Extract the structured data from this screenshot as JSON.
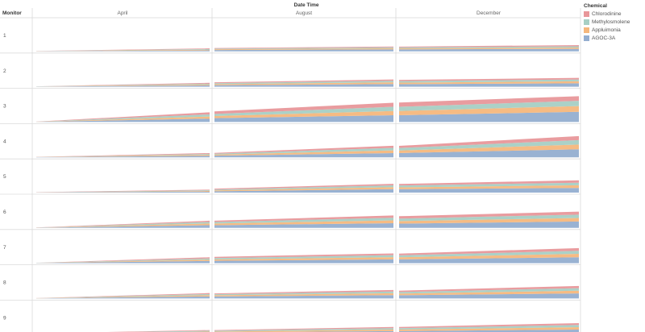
{
  "header": {
    "title": "Date Time",
    "row_header": "Monitor",
    "columns": [
      "April",
      "August",
      "December"
    ]
  },
  "legend": {
    "title": "Chemical",
    "items": [
      {
        "name": "Chlorodinine",
        "color": "#e8979a"
      },
      {
        "name": "Methylosmolene",
        "color": "#a7cfc4"
      },
      {
        "name": "Appluimonia",
        "color": "#f5b77c"
      },
      {
        "name": "AGOC-3A",
        "color": "#94aed0"
      }
    ]
  },
  "chart_data": {
    "type": "area",
    "stacked": true,
    "x": [
      "start",
      "end"
    ],
    "columns": [
      "April",
      "August",
      "December"
    ],
    "rows": [
      "1",
      "2",
      "3",
      "4",
      "5",
      "6",
      "7",
      "8",
      "9"
    ],
    "series_order": [
      "AGOC-3A",
      "Appluimonia",
      "Methylosmolene",
      "Chlorodinine"
    ],
    "panels": [
      {
        "monitor": "1",
        "month": "April",
        "start": [
          0.2,
          0.1,
          0.1,
          0.1
        ],
        "end": [
          1.2,
          0.8,
          0.8,
          0.8
        ]
      },
      {
        "monitor": "1",
        "month": "August",
        "start": [
          1.6,
          0.9,
          0.8,
          0.7
        ],
        "end": [
          2.4,
          1.3,
          1.1,
          1.0
        ]
      },
      {
        "monitor": "1",
        "month": "December",
        "start": [
          2.4,
          1.2,
          1.1,
          1.0
        ],
        "end": [
          3.0,
          1.6,
          1.4,
          1.4
        ]
      },
      {
        "monitor": "2",
        "month": "April",
        "start": [
          0.2,
          0.1,
          0.1,
          0.1
        ],
        "end": [
          1.6,
          1.0,
          1.0,
          1.0
        ]
      },
      {
        "monitor": "2",
        "month": "August",
        "start": [
          1.8,
          1.2,
          1.2,
          1.0
        ],
        "end": [
          3.2,
          2.0,
          1.8,
          1.5
        ]
      },
      {
        "monitor": "2",
        "month": "December",
        "start": [
          3.0,
          1.8,
          1.8,
          1.5
        ],
        "end": [
          4.0,
          2.4,
          2.2,
          1.8
        ]
      },
      {
        "monitor": "3",
        "month": "April",
        "start": [
          0.2,
          0.1,
          0.1,
          0.1
        ],
        "end": [
          4.0,
          2.5,
          2.5,
          2.5
        ]
      },
      {
        "monitor": "3",
        "month": "August",
        "start": [
          4.5,
          2.5,
          2.5,
          3.0
        ],
        "end": [
          8.0,
          5.0,
          5.0,
          4.8
        ]
      },
      {
        "monitor": "3",
        "month": "December",
        "start": [
          8.0,
          5.0,
          5.0,
          5.0
        ],
        "end": [
          12.0,
          6.8,
          6.2,
          5.5
        ]
      },
      {
        "monitor": "4",
        "month": "April",
        "start": [
          0.2,
          0.1,
          0.1,
          0.1
        ],
        "end": [
          1.8,
          1.2,
          1.0,
          1.0
        ]
      },
      {
        "monitor": "4",
        "month": "August",
        "start": [
          2.0,
          1.2,
          1.0,
          1.0
        ],
        "end": [
          5.0,
          3.2,
          3.0,
          2.4
        ]
      },
      {
        "monitor": "4",
        "month": "December",
        "start": [
          5.0,
          3.0,
          3.0,
          2.5
        ],
        "end": [
          9.5,
          5.6,
          5.2,
          4.8
        ]
      },
      {
        "monitor": "5",
        "month": "April",
        "start": [
          0.2,
          0.1,
          0.1,
          0.1
        ],
        "end": [
          1.2,
          0.8,
          0.8,
          0.7
        ]
      },
      {
        "monitor": "5",
        "month": "August",
        "start": [
          1.6,
          1.0,
          1.0,
          1.0
        ],
        "end": [
          4.0,
          2.4,
          2.2,
          1.8
        ]
      },
      {
        "monitor": "5",
        "month": "December",
        "start": [
          4.0,
          2.2,
          2.2,
          1.8
        ],
        "end": [
          5.5,
          3.2,
          3.0,
          2.8
        ]
      },
      {
        "monitor": "6",
        "month": "April",
        "start": [
          0.2,
          0.1,
          0.1,
          0.1
        ],
        "end": [
          3.2,
          2.0,
          1.8,
          1.5
        ]
      },
      {
        "monitor": "6",
        "month": "August",
        "start": [
          3.2,
          2.0,
          1.8,
          1.5
        ],
        "end": [
          5.5,
          3.4,
          3.0,
          2.8
        ]
      },
      {
        "monitor": "6",
        "month": "December",
        "start": [
          5.0,
          3.0,
          3.0,
          2.8
        ],
        "end": [
          7.5,
          4.2,
          4.0,
          3.5
        ]
      },
      {
        "monitor": "7",
        "month": "April",
        "start": [
          0.2,
          0.1,
          0.1,
          0.1
        ],
        "end": [
          2.6,
          1.6,
          1.4,
          1.4
        ]
      },
      {
        "monitor": "7",
        "month": "August",
        "start": [
          2.8,
          1.6,
          1.6,
          1.5
        ],
        "end": [
          4.5,
          2.6,
          2.4,
          2.0
        ]
      },
      {
        "monitor": "7",
        "month": "December",
        "start": [
          4.5,
          2.5,
          2.3,
          2.0
        ],
        "end": [
          7.0,
          4.0,
          3.6,
          3.2
        ]
      },
      {
        "monitor": "8",
        "month": "April",
        "start": [
          0.2,
          0.1,
          0.1,
          0.1
        ],
        "end": [
          2.4,
          1.5,
          1.3,
          1.2
        ]
      },
      {
        "monitor": "8",
        "month": "August",
        "start": [
          2.4,
          1.4,
          1.2,
          1.0
        ],
        "end": [
          4.0,
          2.2,
          2.0,
          1.8
        ]
      },
      {
        "monitor": "8",
        "month": "December",
        "start": [
          3.8,
          2.0,
          1.8,
          1.6
        ],
        "end": [
          6.0,
          3.2,
          3.0,
          2.6
        ]
      },
      {
        "monitor": "9",
        "month": "April",
        "start": [
          0.2,
          0.1,
          0.1,
          0.1
        ],
        "end": [
          1.6,
          1.0,
          1.0,
          0.8
        ]
      },
      {
        "monitor": "9",
        "month": "August",
        "start": [
          1.6,
          1.0,
          1.0,
          0.8
        ],
        "end": [
          3.2,
          1.8,
          1.6,
          1.4
        ]
      },
      {
        "monitor": "9",
        "month": "December",
        "start": [
          3.2,
          1.8,
          1.6,
          1.4
        ],
        "end": [
          5.0,
          2.8,
          2.6,
          2.2
        ]
      }
    ]
  }
}
